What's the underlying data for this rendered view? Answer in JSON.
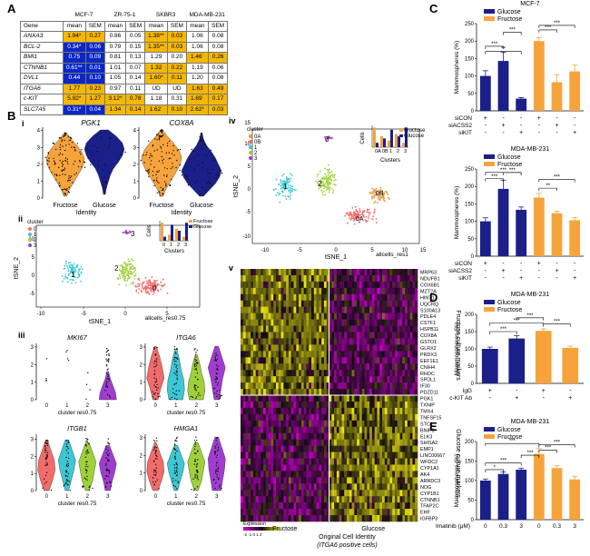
{
  "panels": {
    "A": "A",
    "B": "B",
    "C": "C",
    "D": "D",
    "E": "E"
  },
  "table": {
    "groups": [
      "MCF-7",
      "ZR-75-1",
      "SKBR3",
      "MDA-MB-231"
    ],
    "header": [
      "Gene",
      "mean",
      "SEM",
      "mean",
      "SEM",
      "mean",
      "SEM",
      "mean",
      "SEM"
    ],
    "rows": [
      {
        "gene": "ANXA3",
        "cells": [
          "1.94*",
          "0.27",
          "0.86",
          "0.05",
          "1.38**",
          "0.03",
          "1.06",
          "0.08"
        ],
        "colors": [
          "o",
          "o",
          "",
          "",
          "o",
          "o",
          "",
          ""
        ]
      },
      {
        "gene": "BCL-2",
        "cells": [
          "0.34*",
          "0.06",
          "0.79",
          "0.15",
          "1.35**",
          "0.03",
          "1.06",
          "0.08"
        ],
        "colors": [
          "b",
          "b",
          "",
          "",
          "o",
          "o",
          "",
          ""
        ]
      },
      {
        "gene": "BMI1",
        "cells": [
          "0.75",
          "0.09",
          "0.81",
          "0.13",
          "1.29",
          "0.20",
          "1.46˙",
          "0.26"
        ],
        "colors": [
          "b",
          "b",
          "",
          "",
          "",
          "",
          "o",
          "o"
        ]
      },
      {
        "gene": "CTNNB1",
        "cells": [
          "0.61**",
          "0.01",
          "1.01",
          "0.07",
          "1.32",
          "0.22",
          "1.19",
          "0.06"
        ],
        "colors": [
          "b",
          "b",
          "",
          "",
          "o",
          "o",
          "",
          ""
        ]
      },
      {
        "gene": "DVL1",
        "cells": [
          "0.44",
          "0.10",
          "1.05",
          "0.14",
          "1.60*",
          "0.11",
          "1.20",
          "0.08"
        ],
        "colors": [
          "b",
          "b",
          "",
          "",
          "o",
          "o",
          "",
          ""
        ]
      },
      {
        "gene": "ITGA6",
        "cells": [
          "1.77",
          "0.23",
          "0.97",
          "0.11",
          "UD",
          "UD",
          "1.63",
          "0.49"
        ],
        "colors": [
          "o",
          "o",
          "",
          "",
          "",
          "",
          "o",
          "o"
        ]
      },
      {
        "gene": "c-KIT",
        "cells": [
          "5.92*",
          "1.27",
          "3.12*",
          "0.78",
          "1.18",
          "0.31",
          "1.69˙",
          "0.17"
        ],
        "colors": [
          "o",
          "o",
          "o",
          "o",
          "",
          "",
          "o",
          "o"
        ]
      },
      {
        "gene": "SLC7A5",
        "cells": [
          "0.31*",
          "0.04",
          "1.34",
          "0.14",
          "1.62˙",
          "0.10",
          "2.62*",
          "0.03"
        ],
        "colors": [
          "b",
          "b",
          "o",
          "o",
          "o",
          "o",
          "o",
          "o"
        ]
      }
    ]
  },
  "colors": {
    "glucose": "#1a1f8a",
    "fructose": "#f7a33c",
    "c0": "#f26b6b",
    "c1": "#3dc7d4",
    "c2": "#9fd03a",
    "c3": "#a03dd0"
  },
  "panelB": {
    "i_label": "i",
    "ii_label": "ii",
    "iii_label": "iii",
    "iv_label": "iv",
    "v_label": "v",
    "pgk1": "PGK1",
    "cox8a": "COX8A",
    "fructose": "Fructose",
    "glucose": "Glucose",
    "identity": "Identity",
    "cluster": "cluster",
    "cells": "Cells",
    "clusters": "Clusters",
    "tsne1": "tSNE_1",
    "tsne2": "tSNE_2",
    "allcells_res075": "allcells_res0.75",
    "allcells_res1": "allcells_res1",
    "cluster_res075": "cluster res0.75",
    "mki67": "MKI67",
    "itga6": "ITGA6",
    "itgb1": "ITGB1",
    "hmga1": "HMGA1",
    "ii_clusters": [
      "0",
      "1",
      "2",
      "3"
    ],
    "iv_clusters": [
      "0A",
      "0B",
      "1",
      "2",
      "3"
    ],
    "heatmap_fructose_label": "Fructose culture markers",
    "heatmap_glucose_label": "Glucose culture markers",
    "fructose_genes": [
      "MRP63",
      "NDUFB1",
      "COX6B1",
      "MZT2A",
      "HINT1",
      "UQCRQ",
      "S100A13",
      "PDLE4",
      "CSTF1",
      "HSPB11",
      "COX8A",
      "GSTO1",
      "GLRX2",
      "PRDX3",
      "EEF1E1",
      "CNIH4",
      "RHOC",
      "SPDL1",
      "IF30",
      "PDZD11"
    ],
    "glucose_genes": [
      "PGK1",
      "TXNIP",
      "TMX4",
      "TNFSF15",
      "STC1",
      "BNIP3",
      "ELK3",
      "SHISA2",
      "EMP1",
      "LINC00667",
      "WFDC2",
      "CYP1A1",
      "AK4",
      "ARRDC3",
      "NOG",
      "CYP1B1",
      "CTNNB1",
      "TFAP2C",
      "EHF",
      "IGFBP3"
    ],
    "expression": "Expression",
    "expr_ticks": "-2 -1 0 1 2",
    "x_fructose": "Fructose",
    "x_glucose": "Glucose",
    "orig_identity": "Original Cell Identity",
    "itga6_pos": "(ITGA6 positive cells)"
  },
  "panelC": {
    "title1": "MCF-7",
    "title2": "MDA-MB-231",
    "ylabel": "Mammospheres (%)",
    "legend": [
      "Glucose",
      "Fructose"
    ],
    "rows": [
      "siCON",
      "siACSS2",
      "siKIT"
    ],
    "signs": [
      [
        "+",
        "-",
        "-",
        "+",
        "-",
        "-"
      ],
      [
        "-",
        "+",
        "-",
        "-",
        "+",
        "-"
      ],
      [
        "-",
        "-",
        "+",
        "-",
        "-",
        "+"
      ]
    ],
    "mcf7_values": [
      100,
      143,
      35,
      200,
      82,
      113
    ],
    "mcf7_err": [
      15,
      25,
      3,
      10,
      22,
      18
    ],
    "mda_values": [
      100,
      193,
      133,
      168,
      123,
      103
    ],
    "mda_err": [
      10,
      25,
      8,
      12,
      6,
      8
    ],
    "ylim1": [
      0,
      250
    ],
    "yticks1": [
      0,
      50,
      100,
      150,
      200,
      250
    ],
    "ylim2": [
      0,
      250
    ],
    "yticks2": [
      0,
      50,
      100,
      150,
      200,
      250
    ],
    "sig_mcf7": [
      "***",
      "**",
      "***",
      "***",
      "***"
    ],
    "sig_mda": [
      "***",
      "***",
      "***",
      "**",
      "***"
    ]
  },
  "panelD": {
    "title": "MDA-MB-231",
    "ylabel": "Mammospheres (%)",
    "legend": [
      "Glucose",
      "Fructose"
    ],
    "rows": [
      "IgG",
      "c-KIT Ab"
    ],
    "signs": [
      [
        "+",
        "-",
        "+",
        "-"
      ],
      [
        "-",
        "+",
        "-",
        "+"
      ]
    ],
    "values": [
      100,
      130,
      152,
      103
    ],
    "err": [
      5,
      8,
      6,
      5
    ],
    "ylim": [
      0,
      200
    ],
    "yticks": [
      0,
      50,
      100,
      150,
      200
    ],
    "sig": [
      "***",
      "***",
      "***",
      "***"
    ]
  },
  "panelE": {
    "title": "MDA-MB-231",
    "ylabel": "Mammospheres (%)",
    "legend": [
      "Glucose",
      "Fructose"
    ],
    "xlabel": "Imatinib (μM)",
    "doses": [
      "0",
      "0.3",
      "3",
      "0",
      "0.3",
      "3"
    ],
    "values": [
      100,
      117,
      128,
      168,
      132,
      103
    ],
    "err": [
      4,
      5,
      4,
      14,
      6,
      8
    ],
    "ylim": [
      0,
      200
    ],
    "yticks": [
      0,
      50,
      100,
      150,
      200
    ],
    "sig": [
      "*",
      "***",
      "***",
      "***",
      "***",
      "***"
    ]
  }
}
